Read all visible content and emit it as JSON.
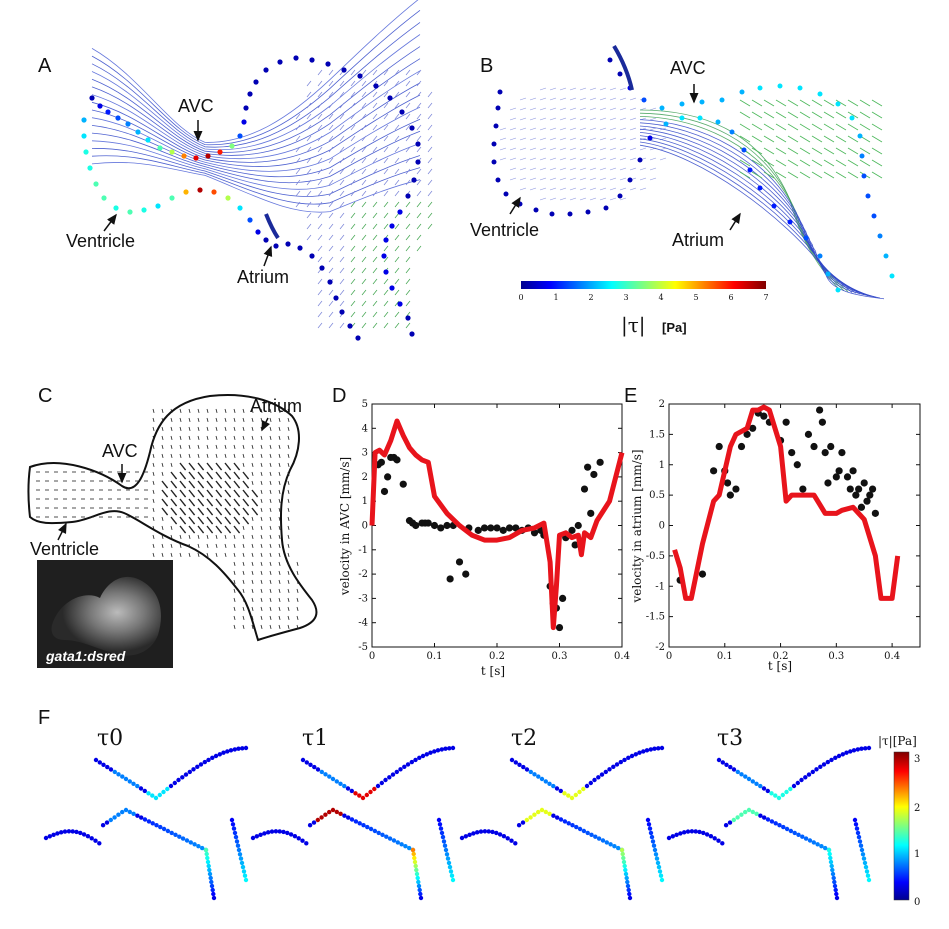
{
  "panels": {
    "A": {
      "letter": "A",
      "labels": {
        "avc": "AVC",
        "ventricle": "Ventricle",
        "atrium": "Atrium"
      }
    },
    "B": {
      "letter": "B",
      "labels": {
        "avc": "AVC",
        "ventricle": "Ventricle",
        "atrium": "Atrium"
      },
      "colorbar": {
        "ticks": [
          "0",
          "1",
          "2",
          "3",
          "4",
          "5",
          "6",
          "7"
        ],
        "label_symbol": "|τ|",
        "label_unit": "[Pa]"
      }
    },
    "C": {
      "letter": "C",
      "labels": {
        "avc": "AVC",
        "ventricle": "Ventricle",
        "atrium": "Atrium"
      },
      "inset_label": "gata1:dsred"
    },
    "F": {
      "letter": "F",
      "titles": [
        "τ0",
        "τ1",
        "τ2",
        "τ3"
      ],
      "colorbar": {
        "label": "|τ|[Pa]",
        "ticks": [
          "3",
          "2",
          "1",
          "0"
        ]
      }
    }
  },
  "chart_data": [
    {
      "panel": "D",
      "type": "line",
      "xlabel": "t [s]",
      "ylabel": "velocity in AVC [mm/s]",
      "xlim": [
        0,
        0.4
      ],
      "ylim": [
        -5,
        5
      ],
      "xticks": [
        "0",
        "0.1",
        "0.2",
        "0.3",
        "0.4"
      ],
      "yticks": [
        "-5",
        "-4",
        "-3",
        "-2",
        "-1",
        "0",
        "1",
        "2",
        "3",
        "4",
        "5"
      ],
      "line": {
        "color": "#e8141c",
        "x": [
          0,
          0.005,
          0.012,
          0.02,
          0.03,
          0.04,
          0.05,
          0.06,
          0.07,
          0.08,
          0.09,
          0.1,
          0.12,
          0.14,
          0.16,
          0.18,
          0.2,
          0.22,
          0.24,
          0.26,
          0.275,
          0.285,
          0.29,
          0.295,
          0.3,
          0.31,
          0.32,
          0.33,
          0.335,
          0.34,
          0.35,
          0.36,
          0.38,
          0.4
        ],
        "y": [
          0,
          3.0,
          3.1,
          2.9,
          3.5,
          4.3,
          3.7,
          3.2,
          2.9,
          2.7,
          2.6,
          1.2,
          0.5,
          0.0,
          -0.4,
          -0.6,
          -0.6,
          -0.5,
          -0.2,
          -0.1,
          0.1,
          -1.5,
          -4.2,
          -2.5,
          -0.4,
          -0.3,
          -0.5,
          -0.4,
          -1.2,
          -0.3,
          -0.5,
          0.2,
          1.0,
          3.0
        ]
      },
      "points": {
        "color": "#111111",
        "x": [
          0.01,
          0.015,
          0.02,
          0.025,
          0.03,
          0.035,
          0.04,
          0.05,
          0.06,
          0.065,
          0.07,
          0.08,
          0.085,
          0.09,
          0.1,
          0.11,
          0.12,
          0.125,
          0.13,
          0.14,
          0.15,
          0.155,
          0.17,
          0.18,
          0.19,
          0.2,
          0.21,
          0.22,
          0.23,
          0.24,
          0.25,
          0.26,
          0.27,
          0.275,
          0.285,
          0.29,
          0.295,
          0.3,
          0.305,
          0.31,
          0.32,
          0.325,
          0.33,
          0.34,
          0.345,
          0.35,
          0.355,
          0.365
        ],
        "y": [
          2.5,
          2.6,
          1.4,
          2.0,
          2.8,
          2.8,
          2.7,
          1.7,
          0.2,
          0.1,
          0.0,
          0.1,
          0.1,
          0.1,
          0.0,
          -0.1,
          0.0,
          -2.2,
          0.0,
          -1.5,
          -2.0,
          -0.1,
          -0.2,
          -0.1,
          -0.1,
          -0.1,
          -0.2,
          -0.1,
          -0.1,
          -0.2,
          -0.1,
          -0.3,
          -0.2,
          -0.4,
          -2.5,
          -3.2,
          -3.4,
          -4.2,
          -3.0,
          -0.5,
          -0.2,
          -0.8,
          0.0,
          1.5,
          2.4,
          0.5,
          2.1,
          2.6
        ]
      }
    },
    {
      "panel": "E",
      "type": "line",
      "xlabel": "t [s]",
      "ylabel": "velocity in atrium [mm/s]",
      "xlim": [
        0,
        0.45
      ],
      "ylim": [
        -2,
        2
      ],
      "xticks": [
        "0",
        "0.1",
        "0.2",
        "0.3",
        "0.4"
      ],
      "yticks": [
        "-2",
        "-1.5",
        "-1",
        "-0.5",
        "0",
        "0.5",
        "1",
        "1.5",
        "2"
      ],
      "line": {
        "color": "#e8141c",
        "x": [
          0.01,
          0.02,
          0.03,
          0.04,
          0.06,
          0.08,
          0.09,
          0.1,
          0.11,
          0.12,
          0.14,
          0.15,
          0.16,
          0.17,
          0.18,
          0.2,
          0.21,
          0.22,
          0.24,
          0.26,
          0.27,
          0.28,
          0.3,
          0.31,
          0.33,
          0.35,
          0.37,
          0.38,
          0.395,
          0.4,
          0.41
        ],
        "y": [
          -0.4,
          -0.7,
          -1.2,
          -1.2,
          -0.3,
          0.4,
          0.5,
          0.9,
          1.3,
          1.5,
          1.6,
          1.9,
          1.9,
          1.95,
          1.9,
          1.3,
          0.4,
          0.5,
          0.5,
          0.5,
          0.35,
          0.2,
          0.2,
          0.25,
          0.3,
          0.1,
          -0.5,
          -1.2,
          -1.2,
          -1.2,
          -0.5
        ]
      },
      "points": {
        "color": "#111111",
        "x": [
          0.02,
          0.06,
          0.08,
          0.09,
          0.1,
          0.105,
          0.11,
          0.12,
          0.13,
          0.14,
          0.15,
          0.16,
          0.17,
          0.18,
          0.2,
          0.21,
          0.22,
          0.23,
          0.24,
          0.25,
          0.26,
          0.27,
          0.275,
          0.28,
          0.285,
          0.29,
          0.3,
          0.305,
          0.31,
          0.32,
          0.325,
          0.33,
          0.335,
          0.34,
          0.345,
          0.35,
          0.355,
          0.36,
          0.365,
          0.37
        ],
        "y": [
          -0.9,
          -0.8,
          0.9,
          1.3,
          0.9,
          0.7,
          0.5,
          0.6,
          1.3,
          1.5,
          1.6,
          1.85,
          1.8,
          1.7,
          1.4,
          1.7,
          1.2,
          1.0,
          0.6,
          1.5,
          1.3,
          1.9,
          1.7,
          1.2,
          0.7,
          1.3,
          0.8,
          0.9,
          1.2,
          0.8,
          0.6,
          0.9,
          0.5,
          0.6,
          0.3,
          0.7,
          0.4,
          0.5,
          0.6,
          0.2
        ]
      }
    }
  ]
}
